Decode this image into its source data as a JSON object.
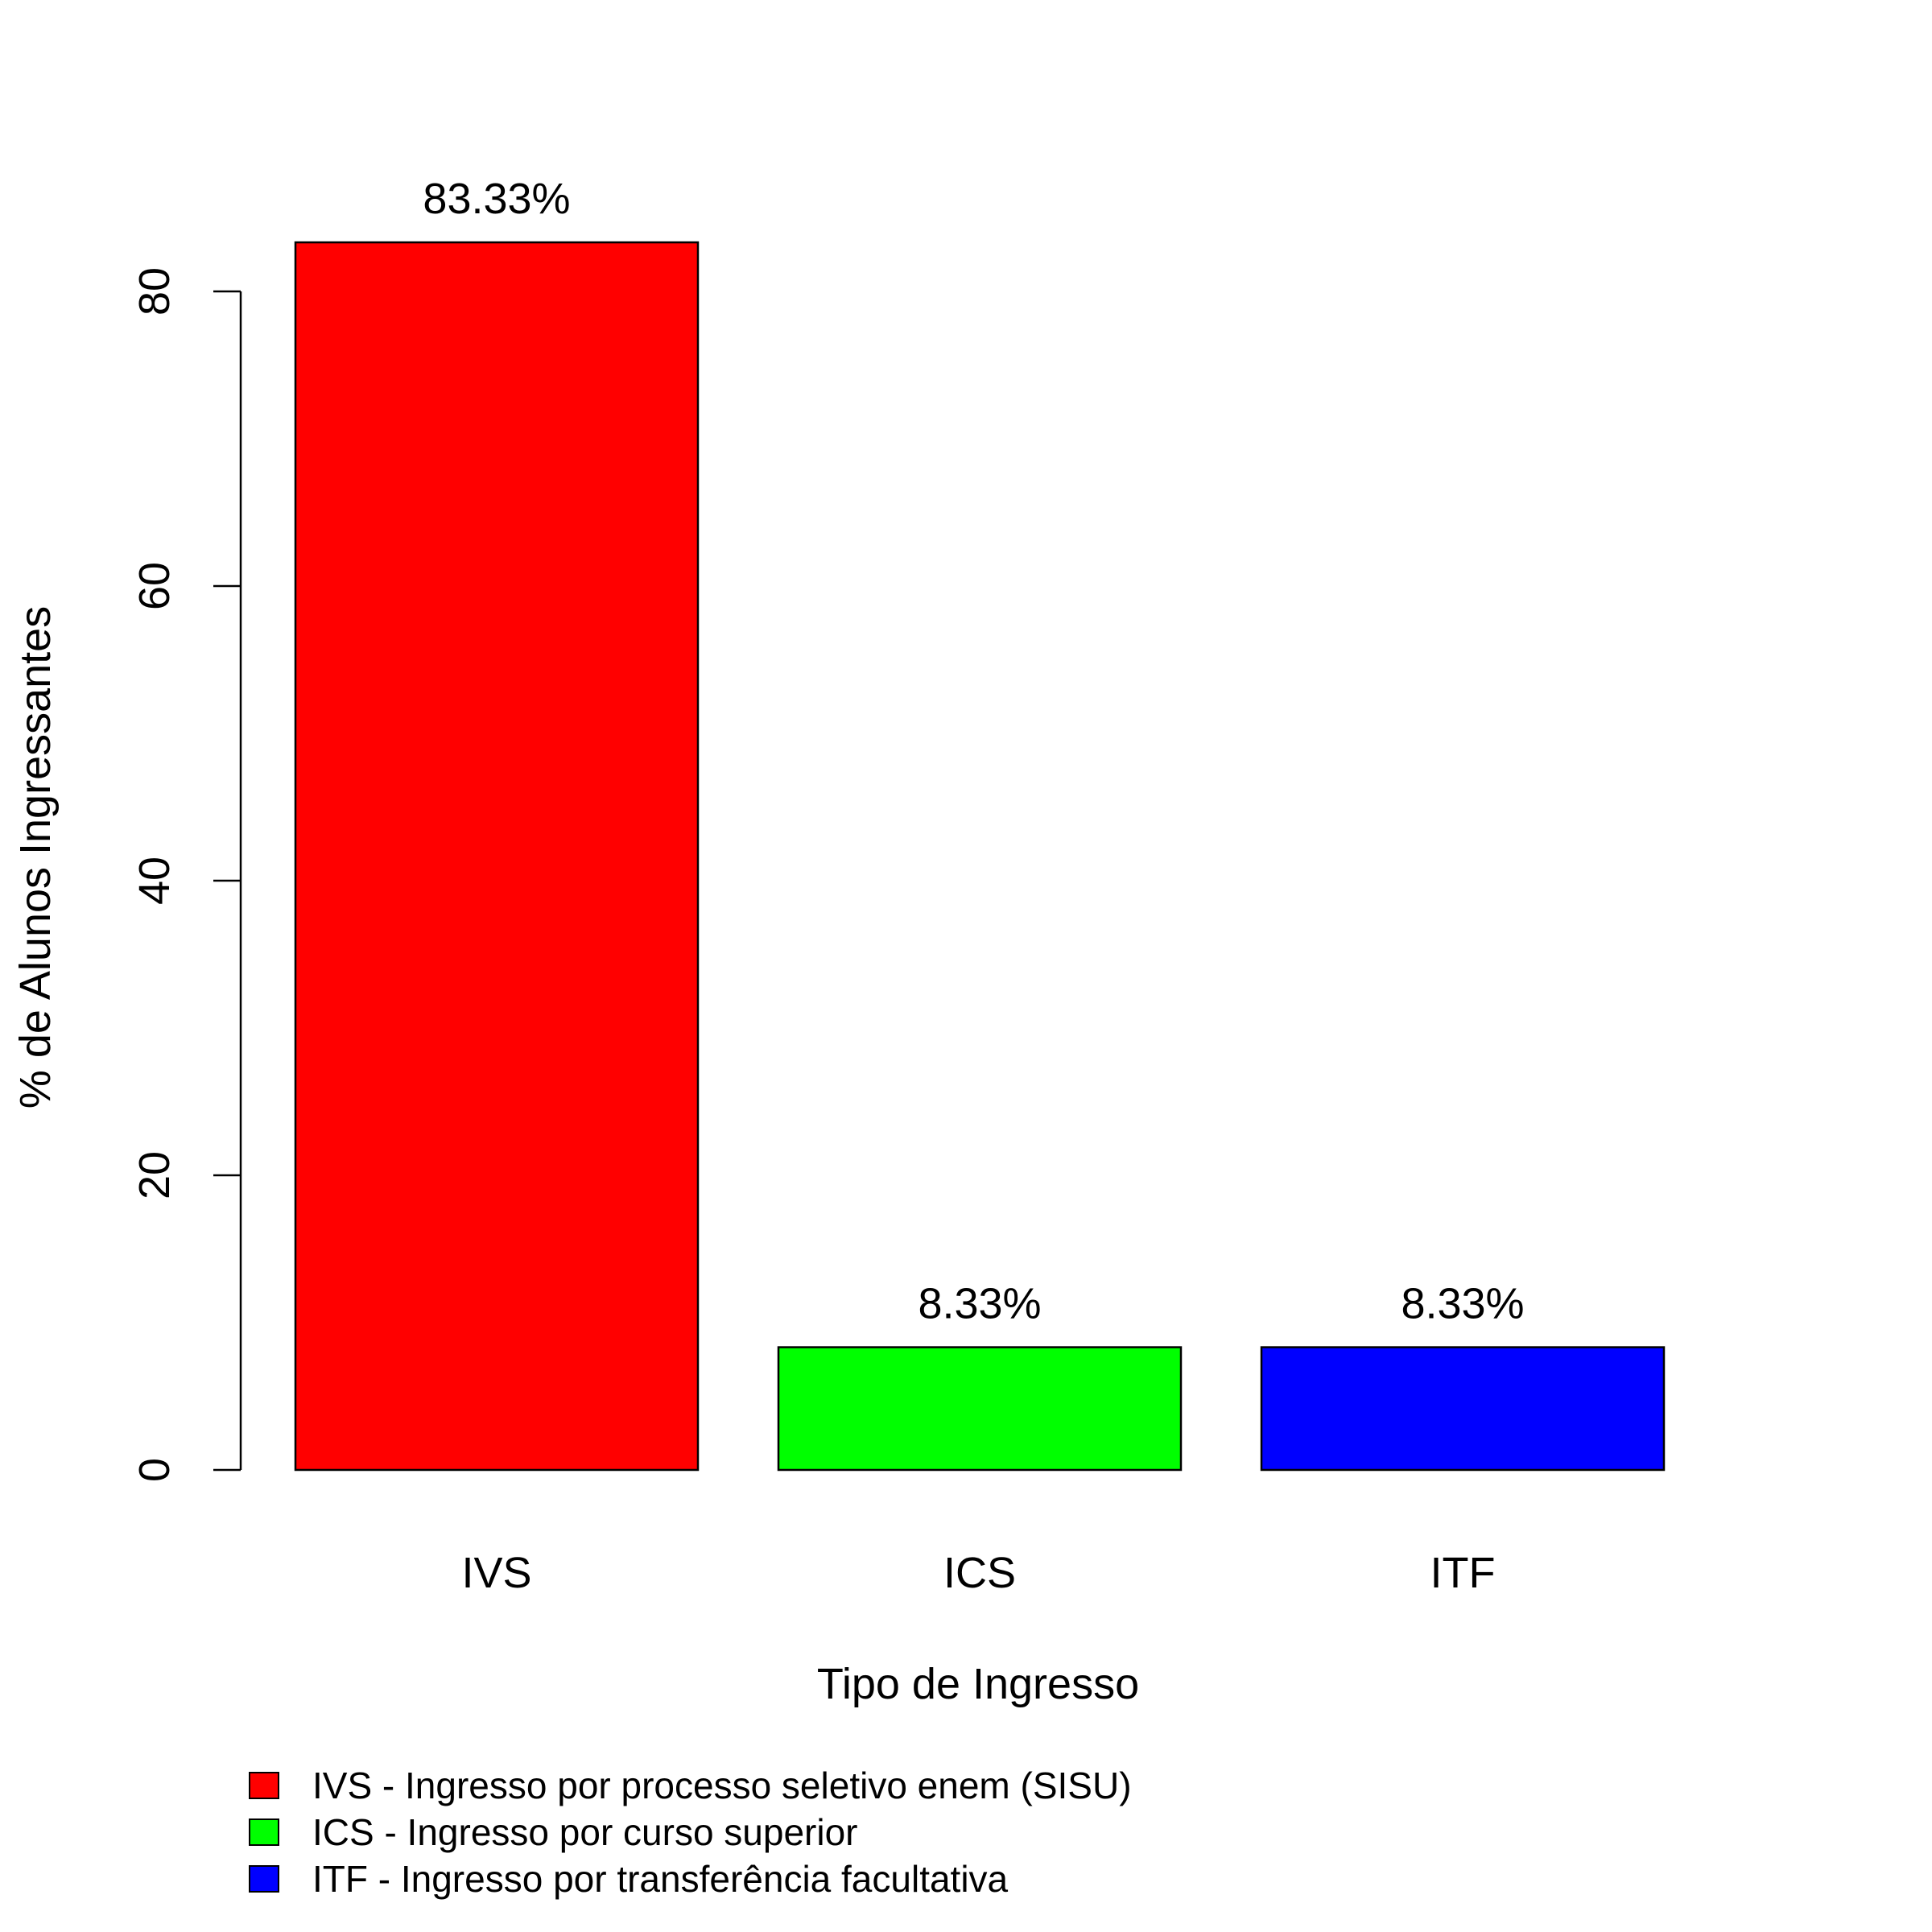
{
  "chart_data": {
    "type": "bar",
    "title": "",
    "xlabel": "Tipo de Ingresso",
    "ylabel": "% de Alunos Ingressantes",
    "categories": [
      "IVS",
      "ICS",
      "ITF"
    ],
    "values": [
      83.33,
      8.33,
      8.33
    ],
    "value_labels": [
      "83.33%",
      "8.33%",
      "8.33%"
    ],
    "colors": [
      "#ff0000",
      "#00ff00",
      "#0000ff"
    ],
    "ylim": [
      0,
      83.33
    ],
    "yticks": [
      0,
      20,
      40,
      60,
      80
    ],
    "ytick_labels": [
      "0",
      "20",
      "40",
      "60",
      "80"
    ],
    "grid": false,
    "legend_position": "bottom-left",
    "legend": [
      {
        "label": "IVS - Ingresso por processo seletivo enem (SISU)",
        "color": "#ff0000"
      },
      {
        "label": "ICS - Ingresso por curso superior",
        "color": "#00ff00"
      },
      {
        "label": "ITF - Ingresso por transferência facultativa",
        "color": "#0000ff"
      }
    ]
  }
}
